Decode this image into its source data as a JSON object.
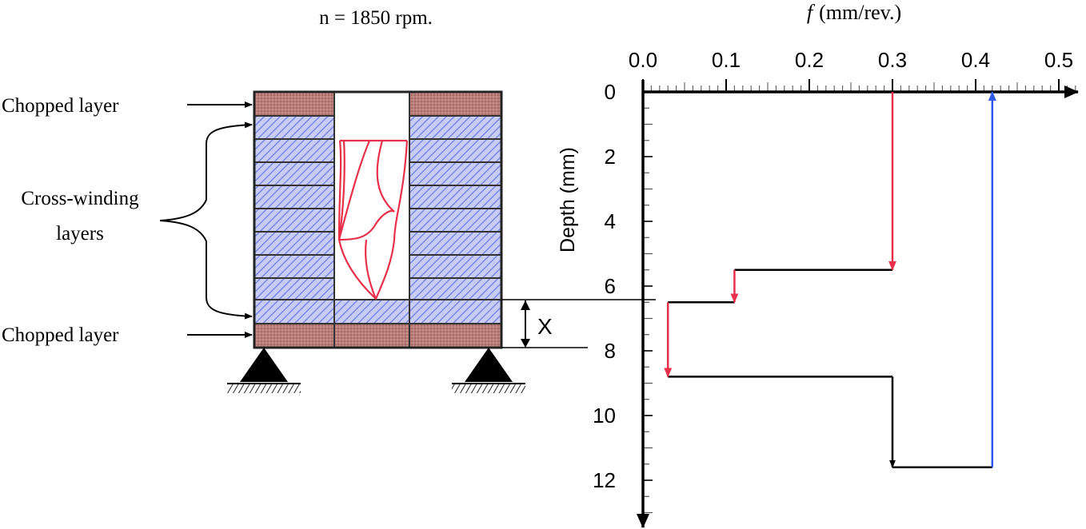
{
  "figure": {
    "speed_label": "n = 1850 rpm.",
    "x_marker": "X"
  },
  "specimen": {
    "label_top": "Chopped layer",
    "label_mid_line1": "Cross-winding",
    "label_mid_line2": "layers",
    "label_bottom": "Chopped layer",
    "chopped_color": "#b97c78",
    "cross_color": "#8b96e8",
    "drill_color": "#e8304a"
  },
  "chart": {
    "x_axis_title_symbol": "f",
    "x_axis_title_unit": "(mm/rev.)",
    "y_axis_title": "Depth (mm)",
    "x_ticks": [
      "0.0",
      "0.1",
      "0.2",
      "0.3",
      "0.4",
      "0.5"
    ],
    "y_ticks": [
      "0",
      "2",
      "4",
      "6",
      "8",
      "10",
      "12"
    ],
    "step_color": "#000000",
    "down_arrow_color": "#e8304a",
    "up_arrow_color": "#2f5bea"
  },
  "chart_data": {
    "type": "line",
    "x_range": [
      0,
      0.5
    ],
    "y_range": [
      0,
      13
    ],
    "y_inverted": true,
    "feed_profile": [
      {
        "depth": 0,
        "feed": 0.3
      },
      {
        "depth": 5.5,
        "feed": 0.3
      },
      {
        "depth": 5.5,
        "feed": 0.11
      },
      {
        "depth": 6.5,
        "feed": 0.11
      },
      {
        "depth": 6.5,
        "feed": 0.03
      },
      {
        "depth": 8.8,
        "feed": 0.03
      },
      {
        "depth": 8.8,
        "feed": 0.3
      },
      {
        "depth": 11.6,
        "feed": 0.3
      },
      {
        "depth": 11.6,
        "feed": 0.42
      },
      {
        "depth": 0,
        "feed": 0.42
      }
    ],
    "arrows": [
      {
        "name": "feed-0.30-down",
        "feed": 0.3,
        "from": 0,
        "to": 5.5,
        "color": "red"
      },
      {
        "name": "feed-0.11-down",
        "feed": 0.11,
        "from": 5.5,
        "to": 6.5,
        "color": "red"
      },
      {
        "name": "feed-0.03-down",
        "feed": 0.03,
        "from": 6.5,
        "to": 8.8,
        "color": "red"
      },
      {
        "name": "feed-0.30-down-2",
        "feed": 0.3,
        "from": 8.8,
        "to": 11.6,
        "color": "black"
      },
      {
        "name": "retract-up",
        "feed": 0.42,
        "from": 11.6,
        "to": 0,
        "color": "blue"
      }
    ]
  }
}
